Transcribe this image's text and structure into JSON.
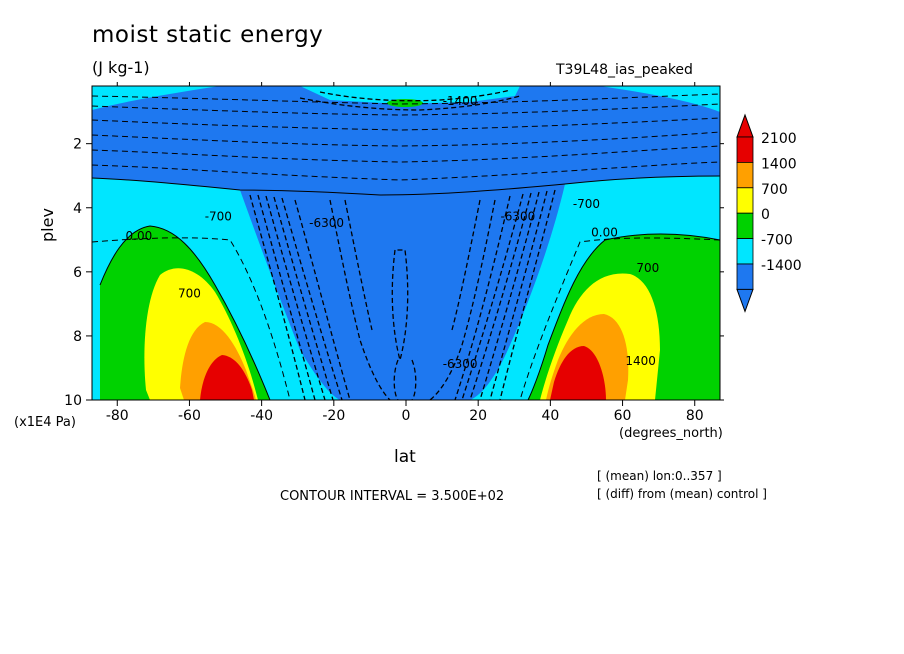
{
  "title": "moist static energy",
  "units": "(J kg-1)",
  "run_id": "T39L48_ias_peaked",
  "contour_interval": "CONTOUR INTERVAL = 3.500E+02",
  "notes": [
    "[ (mean) lon:0..357 ]",
    "[ (diff) from (mean) control ]"
  ],
  "colors": {
    "level_-1400": "#1e78f0",
    "level_-700": "#00e6ff",
    "level_0": "#00d200",
    "level_700": "#ffff00",
    "level_1400": "#ffa000",
    "level_2100": "#e60000"
  },
  "chart_data": {
    "type": "heatmap",
    "title": "moist static energy",
    "subtitle": "(J kg-1)",
    "xlabel": "lat",
    "x_units": "(degrees_north)",
    "ylabel": "plev",
    "y_units": "(x1E4 Pa)",
    "xlim": [
      -87,
      87
    ],
    "ylim": [
      10,
      0.2
    ],
    "x_ticks": [
      -80,
      -60,
      -40,
      -20,
      0,
      20,
      40,
      60,
      80
    ],
    "x_tick_labels": [
      "-80",
      "-60",
      "-40",
      "-20",
      "0",
      "20",
      "40",
      "60",
      "80"
    ],
    "y_ticks": [
      2,
      4,
      6,
      8,
      10
    ],
    "y_tick_labels": [
      "2",
      "4",
      "6",
      "8",
      "10"
    ],
    "colorbar": {
      "labels": [
        "2100",
        "1400",
        "700",
        "0",
        "-700",
        "-1400"
      ],
      "levels": [
        -1400,
        -700,
        0,
        700,
        1400,
        2100
      ],
      "extend": "both"
    },
    "contour_labels": [
      {
        "text": "0.00",
        "lat": -74,
        "plev": 5.0
      },
      {
        "text": "-700",
        "lat": -52,
        "plev": 4.4
      },
      {
        "text": "700",
        "lat": -60,
        "plev": 6.8
      },
      {
        "text": "-6300",
        "lat": -22,
        "plev": 4.6
      },
      {
        "text": "0.00",
        "lat": 55,
        "plev": 4.9
      },
      {
        "text": "-700",
        "lat": 50,
        "plev": 4.0
      },
      {
        "text": "700",
        "lat": 67,
        "plev": 6.0
      },
      {
        "text": "-6300",
        "lat": 31,
        "plev": 4.4
      },
      {
        "text": "1400",
        "lat": 65,
        "plev": 8.9
      },
      {
        "text": "-6300",
        "lat": 15,
        "plev": 9.0
      },
      {
        "text": "-1400",
        "lat": 15,
        "plev": 0.8
      }
    ],
    "grid": false
  }
}
